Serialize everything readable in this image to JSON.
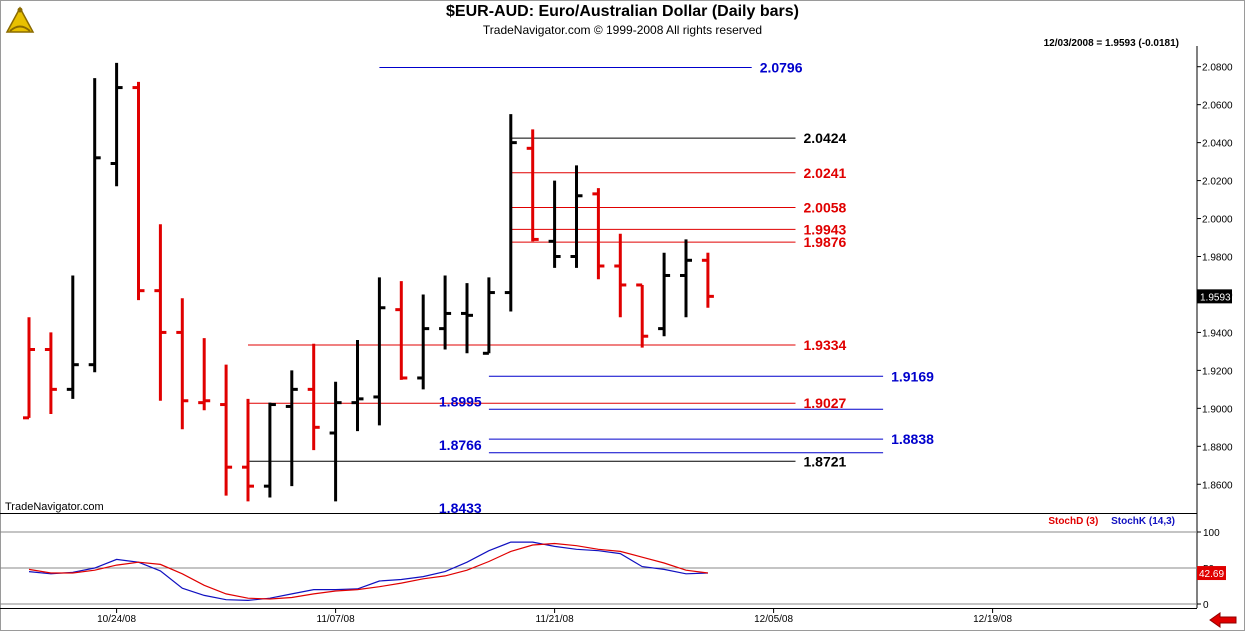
{
  "header": {
    "title": "$EUR-AUD:  Euro/Australian Dollar  (Daily bars)",
    "copyright": "TradeNavigator.com © 1999-2008 All rights reserved",
    "quote": "12/03/2008 = 1.9593 (-0.0181)",
    "watermark": "TradeNavigator.com",
    "logo_icon": "sextant-icon"
  },
  "indicator_legend": {
    "stoch_d": "StochD (3)",
    "stoch_k": "StochK (14,3)"
  },
  "colors": {
    "up_bar": "#000000",
    "down_bar": "#e00000",
    "blue_level": "#0000cc",
    "red_level": "#e00000",
    "stoch_k": "#1010c0",
    "stoch_d": "#e00000"
  },
  "chart_data": [
    {
      "type": "ohlc",
      "symbol": "$EUR-AUD",
      "ylim": [
        1.843,
        2.09
      ],
      "y_ticks": [
        "2.0800",
        "2.0600",
        "2.0400",
        "2.0200",
        "2.0000",
        "1.9800",
        "1.9600",
        "1.9400",
        "1.9200",
        "1.9000",
        "1.8800",
        "1.8600"
      ],
      "last_price_label": "1.9593",
      "x_ticks": [
        "10/24/08",
        "11/07/08",
        "11/21/08",
        "12/05/08",
        "12/19/08"
      ],
      "x_tick_bar_index": [
        4,
        14,
        24,
        34,
        44
      ],
      "bars": [
        {
          "o": 1.895,
          "h": 1.948,
          "l": 1.895,
          "c": 1.931,
          "down": true
        },
        {
          "o": 1.931,
          "h": 1.94,
          "l": 1.897,
          "c": 1.91,
          "down": true
        },
        {
          "o": 1.91,
          "h": 1.97,
          "l": 1.905,
          "c": 1.923,
          "down": false
        },
        {
          "o": 1.923,
          "h": 2.074,
          "l": 1.919,
          "c": 2.032,
          "down": false
        },
        {
          "o": 2.029,
          "h": 2.082,
          "l": 2.017,
          "c": 2.069,
          "down": false
        },
        {
          "o": 2.069,
          "h": 2.072,
          "l": 1.957,
          "c": 1.962,
          "down": true
        },
        {
          "o": 1.962,
          "h": 1.997,
          "l": 1.904,
          "c": 1.94,
          "down": true
        },
        {
          "o": 1.94,
          "h": 1.958,
          "l": 1.889,
          "c": 1.904,
          "down": true
        },
        {
          "o": 1.903,
          "h": 1.937,
          "l": 1.899,
          "c": 1.904,
          "down": true
        },
        {
          "o": 1.902,
          "h": 1.923,
          "l": 1.854,
          "c": 1.869,
          "down": true
        },
        {
          "o": 1.869,
          "h": 1.905,
          "l": 1.851,
          "c": 1.859,
          "down": true
        },
        {
          "o": 1.859,
          "h": 1.903,
          "l": 1.853,
          "c": 1.902,
          "down": false
        },
        {
          "o": 1.901,
          "h": 1.92,
          "l": 1.859,
          "c": 1.91,
          "down": false
        },
        {
          "o": 1.91,
          "h": 1.934,
          "l": 1.878,
          "c": 1.89,
          "down": true
        },
        {
          "o": 1.887,
          "h": 1.914,
          "l": 1.851,
          "c": 1.903,
          "down": false
        },
        {
          "o": 1.903,
          "h": 1.936,
          "l": 1.888,
          "c": 1.905,
          "down": false
        },
        {
          "o": 1.906,
          "h": 1.969,
          "l": 1.891,
          "c": 1.953,
          "down": false
        },
        {
          "o": 1.952,
          "h": 1.967,
          "l": 1.915,
          "c": 1.916,
          "down": true
        },
        {
          "o": 1.916,
          "h": 1.96,
          "l": 1.91,
          "c": 1.942,
          "down": false
        },
        {
          "o": 1.942,
          "h": 1.97,
          "l": 1.931,
          "c": 1.95,
          "down": false
        },
        {
          "o": 1.95,
          "h": 1.966,
          "l": 1.929,
          "c": 1.949,
          "down": false
        },
        {
          "o": 1.929,
          "h": 1.969,
          "l": 1.929,
          "c": 1.961,
          "down": false
        },
        {
          "o": 1.961,
          "h": 2.055,
          "l": 1.951,
          "c": 2.04,
          "down": false
        },
        {
          "o": 2.037,
          "h": 2.047,
          "l": 1.988,
          "c": 1.989,
          "down": true
        },
        {
          "o": 1.988,
          "h": 2.02,
          "l": 1.974,
          "c": 1.98,
          "down": false
        },
        {
          "o": 1.98,
          "h": 2.028,
          "l": 1.974,
          "c": 2.012,
          "down": false
        },
        {
          "o": 2.013,
          "h": 2.016,
          "l": 1.968,
          "c": 1.975,
          "down": true
        },
        {
          "o": 1.975,
          "h": 1.992,
          "l": 1.948,
          "c": 1.965,
          "down": true
        },
        {
          "o": 1.965,
          "h": 1.965,
          "l": 1.932,
          "c": 1.938,
          "down": true
        },
        {
          "o": 1.942,
          "h": 1.982,
          "l": 1.938,
          "c": 1.97,
          "down": false
        },
        {
          "o": 1.97,
          "h": 1.989,
          "l": 1.948,
          "c": 1.978,
          "down": false
        },
        {
          "o": 1.978,
          "h": 1.982,
          "l": 1.953,
          "c": 1.959,
          "down": true
        }
      ],
      "levels": [
        {
          "label": "2.0796",
          "value": 2.0796,
          "color": "blue",
          "from_bar": 16,
          "to_bar": 33
        },
        {
          "label": "2.0424",
          "value": 2.0424,
          "color": "black",
          "from_bar": 22,
          "to_bar": 35
        },
        {
          "label": "2.0241",
          "value": 2.0241,
          "color": "red",
          "from_bar": 22,
          "to_bar": 35
        },
        {
          "label": "2.0058",
          "value": 2.0058,
          "color": "red",
          "from_bar": 22,
          "to_bar": 35
        },
        {
          "label": "1.9943",
          "value": 1.9943,
          "color": "red",
          "from_bar": 22,
          "to_bar": 35
        },
        {
          "label": "1.9876",
          "value": 1.9876,
          "color": "red",
          "from_bar": 22,
          "to_bar": 35
        },
        {
          "label": "1.9334",
          "value": 1.9334,
          "color": "red",
          "from_bar": 10,
          "to_bar": 35
        },
        {
          "label": "1.9169",
          "value": 1.9169,
          "color": "blue",
          "from_bar": 21,
          "to_bar": 39
        },
        {
          "label": "1.9027",
          "value": 1.9027,
          "color": "red",
          "from_bar": 10,
          "to_bar": 35
        },
        {
          "label": "1.8995",
          "value": 1.8995,
          "color": "blue",
          "from_bar": 21,
          "to_bar": 39,
          "label_side": "left"
        },
        {
          "label": "1.8838",
          "value": 1.8838,
          "color": "blue",
          "from_bar": 21,
          "to_bar": 39
        },
        {
          "label": "1.8766",
          "value": 1.8766,
          "color": "blue",
          "from_bar": 21,
          "to_bar": 39,
          "label_side": "left"
        },
        {
          "label": "1.8721",
          "value": 1.8721,
          "color": "black",
          "from_bar": 10,
          "to_bar": 35
        },
        {
          "label": "1.8433",
          "value": 1.8433,
          "color": "blue",
          "from_bar": 21,
          "to_bar": 39,
          "label_side": "left",
          "clipped": true
        }
      ]
    },
    {
      "type": "line",
      "name": "stochastic",
      "ylim": [
        0,
        100
      ],
      "y_ticks": [
        "100",
        "50",
        "0"
      ],
      "last_value_label": "42.69",
      "series": [
        {
          "name": "StochK (14,3)",
          "values": [
            45,
            42,
            44,
            50,
            62,
            58,
            46,
            22,
            12,
            6,
            5,
            8,
            14,
            20,
            20,
            21,
            32,
            34,
            38,
            45,
            58,
            74,
            86,
            86,
            80,
            76,
            74,
            70,
            52,
            48,
            42,
            43
          ]
        },
        {
          "name": "StochD (3)",
          "values": [
            48,
            43,
            43,
            47,
            54,
            58,
            55,
            42,
            26,
            14,
            8,
            7,
            9,
            14,
            18,
            20,
            24,
            29,
            35,
            39,
            47,
            59,
            73,
            82,
            84,
            81,
            76,
            73,
            65,
            57,
            47,
            43
          ]
        }
      ]
    }
  ]
}
